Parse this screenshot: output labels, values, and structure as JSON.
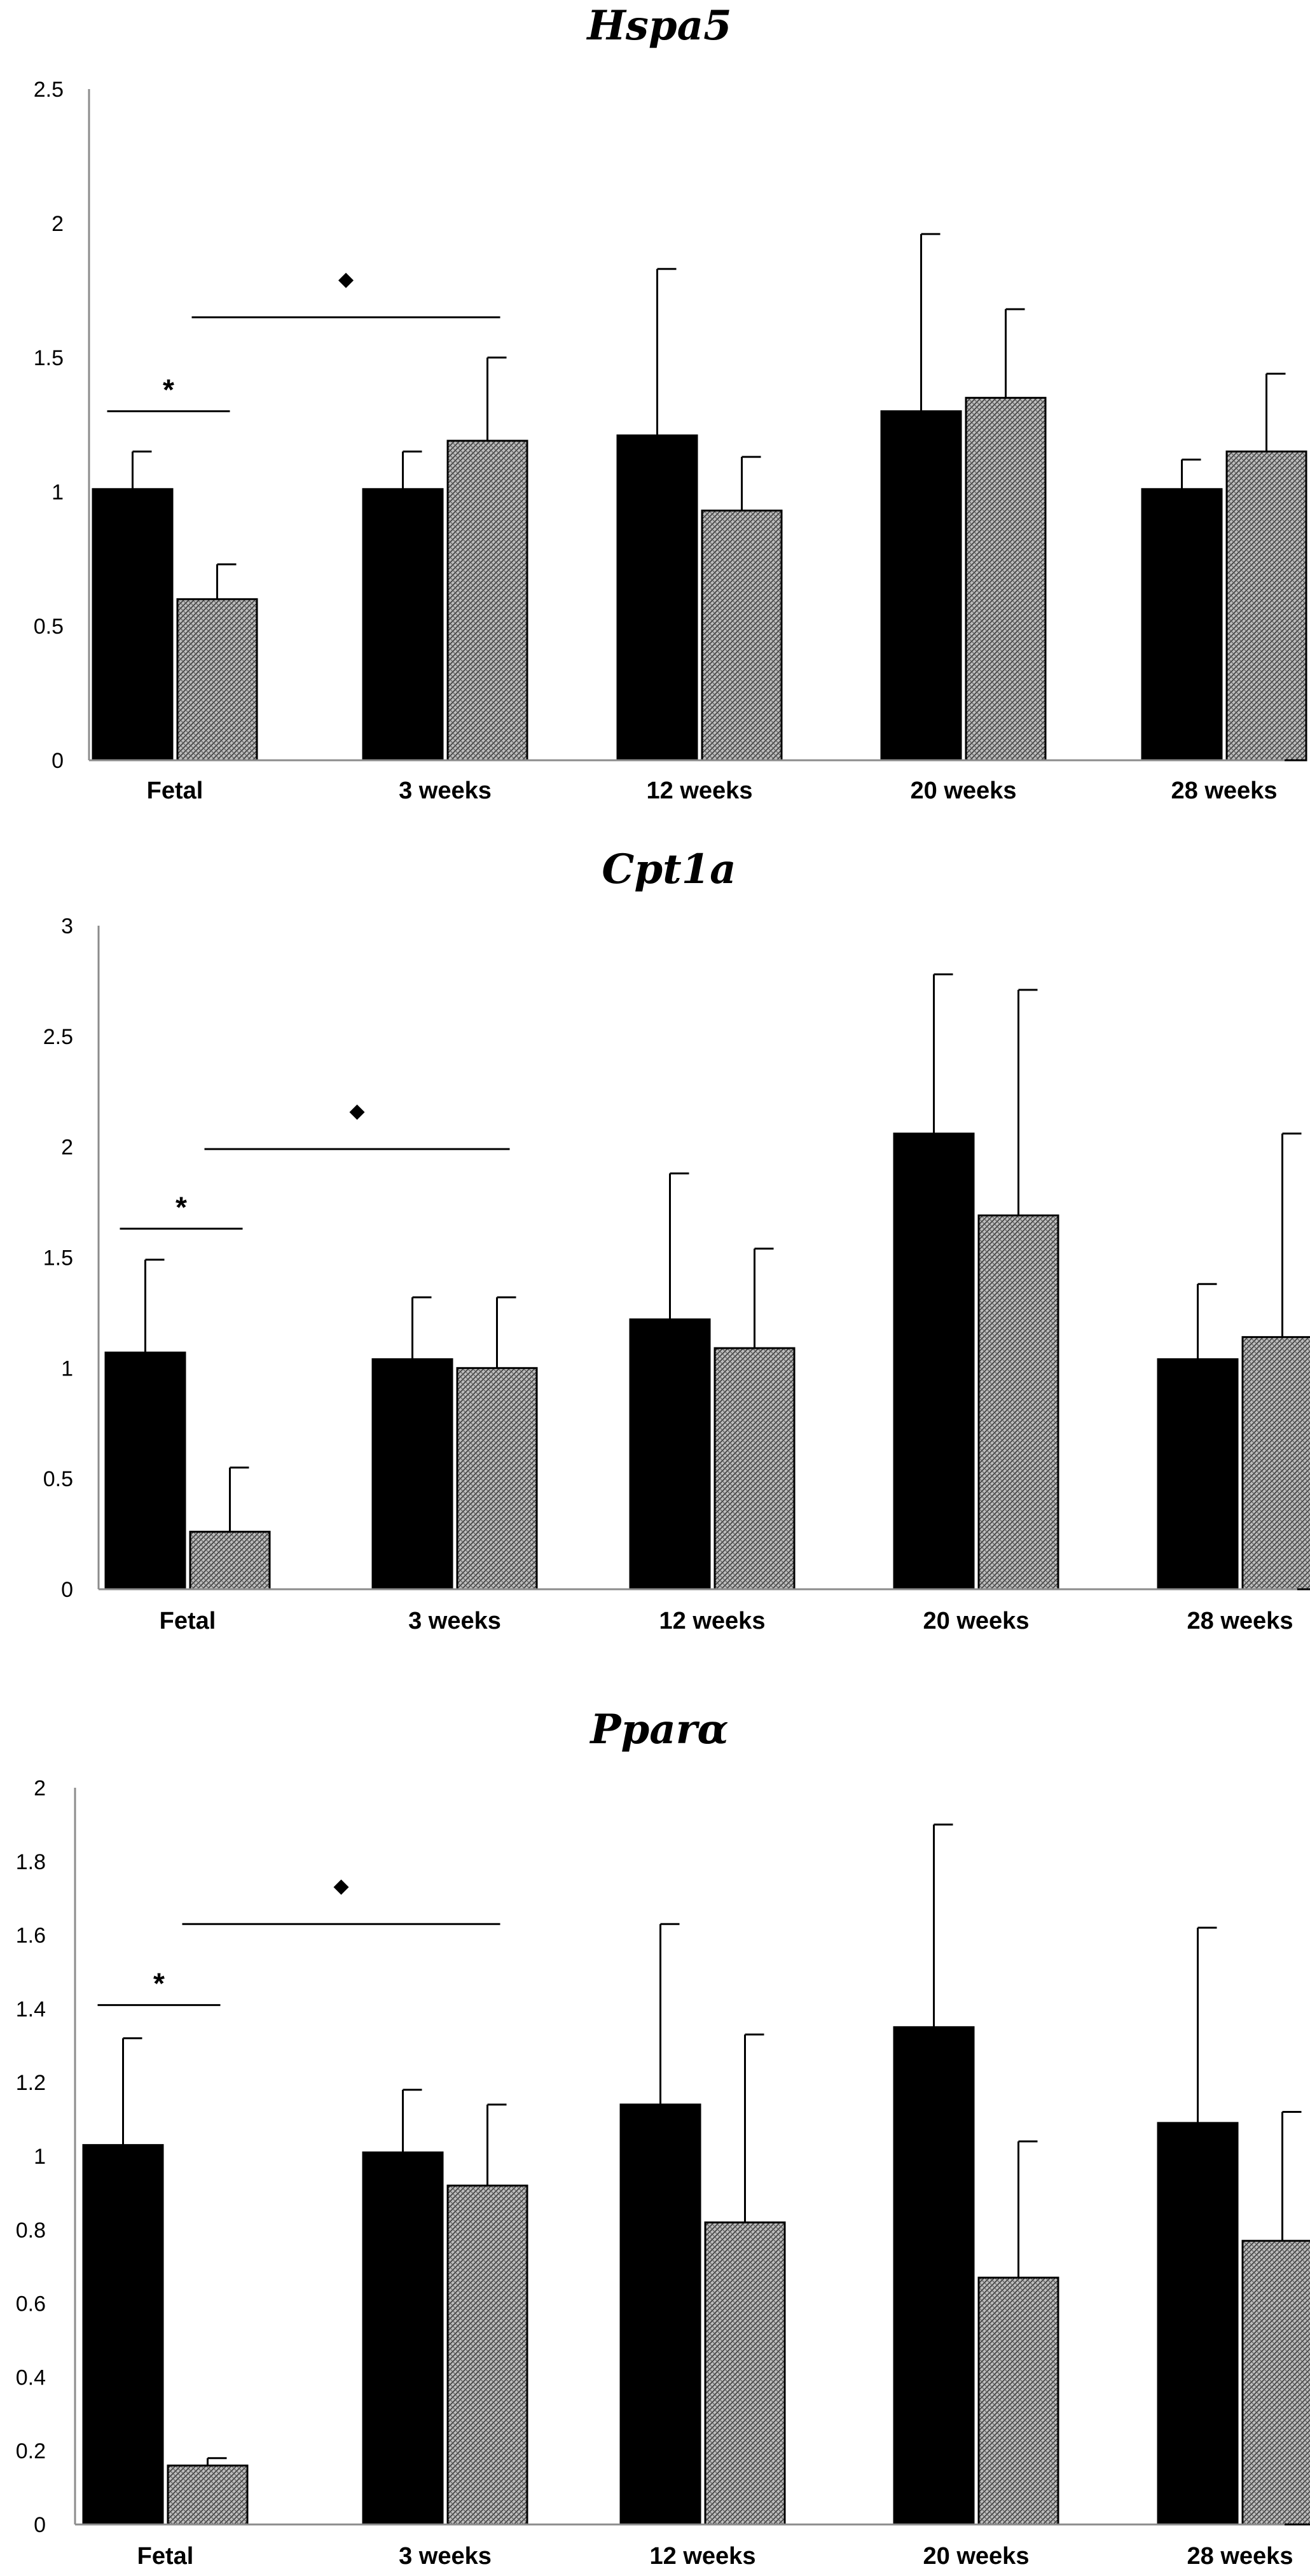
{
  "colors": {
    "control": "#000000",
    "treated_pattern": "#8a8a8a",
    "axis": "#8c8c8c"
  },
  "chart_data": [
    {
      "type": "bar",
      "title": "Hspa5",
      "categories": [
        "Fetal",
        "3 weeks",
        "12 weeks",
        "20 weeks",
        "28 weeks"
      ],
      "y_ticks": [
        "0",
        "0.5",
        "1",
        "1.5",
        "2",
        "2.5"
      ],
      "ylim": [
        0,
        2.5
      ],
      "series": [
        {
          "name": "solid",
          "values": [
            1.01,
            1.01,
            1.21,
            1.3,
            1.01
          ],
          "errors": [
            0.14,
            0.14,
            0.62,
            0.66,
            0.11
          ]
        },
        {
          "name": "hatched",
          "values": [
            0.6,
            1.19,
            0.93,
            1.35,
            1.15
          ],
          "errors": [
            0.13,
            0.31,
            0.2,
            0.33,
            0.29
          ]
        }
      ],
      "significance": [
        {
          "symbol": "*",
          "y": 1.3,
          "from": {
            "cat": 0,
            "series": 0
          },
          "to": {
            "cat": 0,
            "series": 1
          }
        },
        {
          "symbol": "◆",
          "y": 1.65,
          "from": {
            "cat": 0,
            "series": 1
          },
          "to": {
            "cat": 1,
            "series": 1
          }
        }
      ]
    },
    {
      "type": "bar",
      "title": "Cpt1a",
      "categories": [
        "Fetal",
        "3 weeks",
        "12 weeks",
        "20 weeks",
        "28 weeks"
      ],
      "y_ticks": [
        "0",
        "0.5",
        "1",
        "1.5",
        "2",
        "2.5",
        "3"
      ],
      "ylim": [
        0,
        3
      ],
      "series": [
        {
          "name": "solid",
          "values": [
            1.07,
            1.04,
            1.22,
            2.06,
            1.04
          ],
          "errors": [
            0.42,
            0.28,
            0.66,
            0.72,
            0.34
          ]
        },
        {
          "name": "hatched",
          "values": [
            0.26,
            1.0,
            1.09,
            1.69,
            1.14
          ],
          "errors": [
            0.29,
            0.32,
            0.45,
            1.02,
            0.92
          ]
        }
      ],
      "significance": [
        {
          "symbol": "*",
          "y": 1.63,
          "from": {
            "cat": 0,
            "series": 0
          },
          "to": {
            "cat": 0,
            "series": 1
          }
        },
        {
          "symbol": "◆",
          "y": 1.99,
          "from": {
            "cat": 0,
            "series": 1
          },
          "to": {
            "cat": 1,
            "series": 1
          }
        }
      ]
    },
    {
      "type": "bar",
      "title": "Pparα",
      "categories": [
        "Fetal",
        "3 weeks",
        "12 weeks",
        "20 weeks",
        "28 weeks"
      ],
      "y_ticks": [
        "0",
        "0.2",
        "0.4",
        "0.6",
        "0.8",
        "1",
        "1.2",
        "1.4",
        "1.6",
        "1.8",
        "2"
      ],
      "ylim": [
        0,
        2
      ],
      "series": [
        {
          "name": "solid",
          "values": [
            1.03,
            1.01,
            1.14,
            1.35,
            1.09
          ],
          "errors": [
            0.29,
            0.17,
            0.49,
            0.55,
            0.53
          ]
        },
        {
          "name": "hatched",
          "values": [
            0.16,
            0.92,
            0.82,
            0.67,
            0.77
          ],
          "errors": [
            0.02,
            0.22,
            0.51,
            0.37,
            0.35
          ]
        }
      ],
      "significance": [
        {
          "symbol": "*",
          "y": 1.41,
          "from": {
            "cat": 0,
            "series": 0
          },
          "to": {
            "cat": 0,
            "series": 1
          }
        },
        {
          "symbol": "◆",
          "y": 1.63,
          "from": {
            "cat": 0,
            "series": 1
          },
          "to": {
            "cat": 1,
            "series": 1
          }
        }
      ]
    }
  ]
}
